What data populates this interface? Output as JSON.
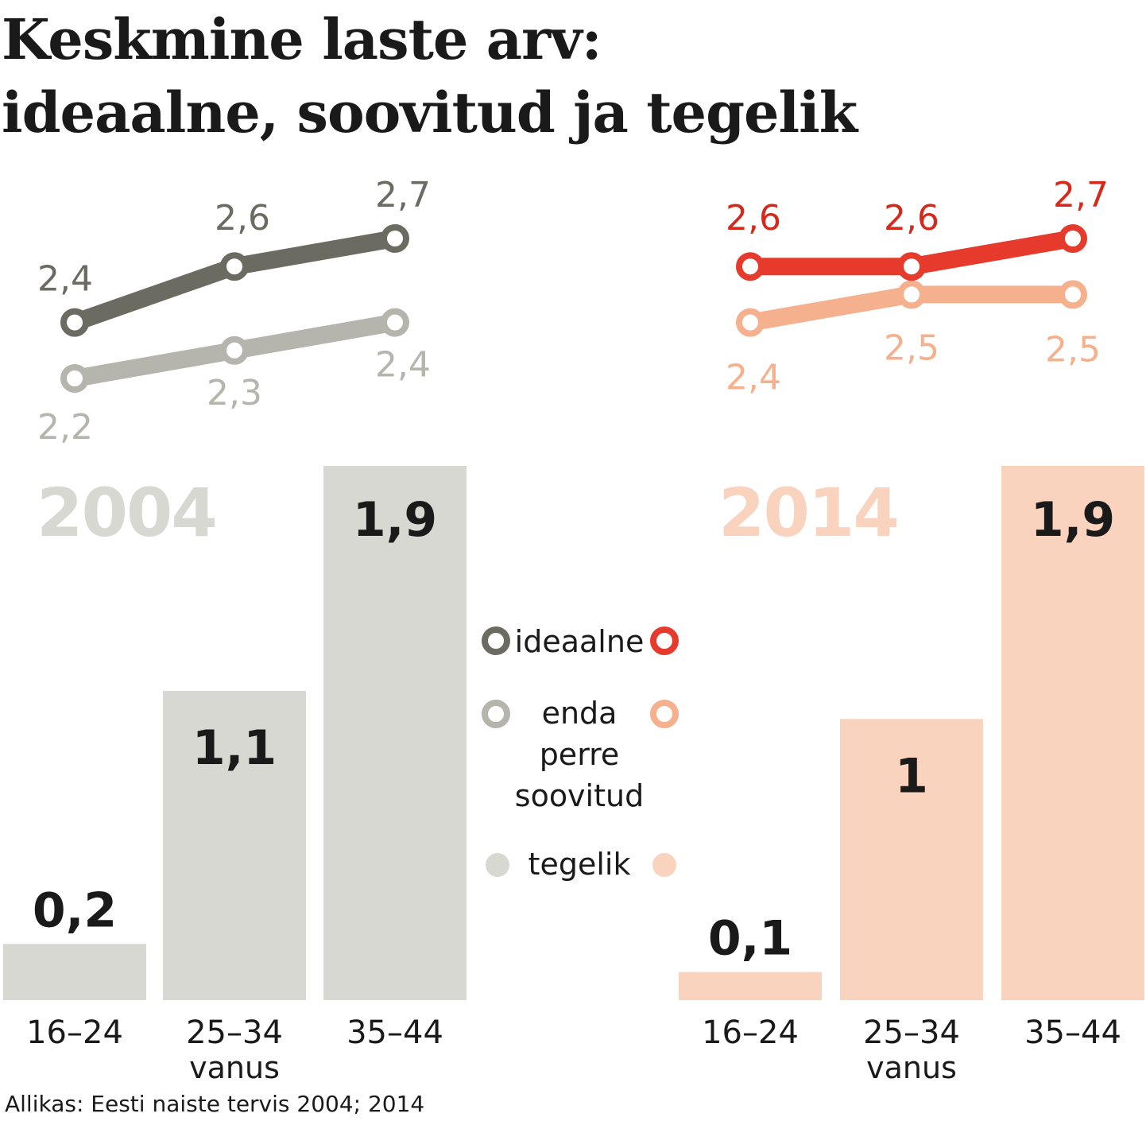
{
  "title_line1": "Keskmine laste arv:",
  "title_line2": "ideaalne, soovitud ja tegelik",
  "source": "Allikas: Eesti naiste tervis 2004; 2014",
  "legend": {
    "ideal": "ideaalne",
    "desired_1": "enda",
    "desired_2": "perre",
    "desired_3": "soovitud",
    "actual": "tegelik"
  },
  "colors": {
    "ideal_2004": "#6b6b62",
    "desired_2004": "#b5b5ad",
    "actual_2004": "#d8d8d2",
    "ideal_2014": "#e53a2c",
    "desired_2014": "#f5b08e",
    "actual_2014": "#f9d3bd",
    "year_2004": "#d8d8d2",
    "year_2014": "#f9d3bd",
    "text": "#1a1a1a"
  },
  "chart_data": [
    {
      "type": "bar",
      "panel": "2004",
      "year_label": "2004",
      "categories": [
        "16–24",
        "25–34",
        "35–44"
      ],
      "xlabel": "vanus",
      "series": [
        {
          "name": "ideaalne",
          "kind": "line",
          "values": [
            2.4,
            2.6,
            2.7
          ],
          "labels": [
            "2,4",
            "2,6",
            "2,7"
          ]
        },
        {
          "name": "enda perre soovitud",
          "kind": "line",
          "values": [
            2.2,
            2.3,
            2.4
          ],
          "labels": [
            "2,2",
            "2,3",
            "2,4"
          ]
        },
        {
          "name": "tegelik",
          "kind": "bar",
          "values": [
            0.2,
            1.1,
            1.9
          ],
          "labels": [
            "0,2",
            "1,1",
            "1,9"
          ]
        }
      ]
    },
    {
      "type": "bar",
      "panel": "2014",
      "year_label": "2014",
      "categories": [
        "16–24",
        "25–34",
        "35–44"
      ],
      "xlabel": "vanus",
      "series": [
        {
          "name": "ideaalne",
          "kind": "line",
          "values": [
            2.6,
            2.6,
            2.7
          ],
          "labels": [
            "2,6",
            "2,6",
            "2,7"
          ]
        },
        {
          "name": "enda perre soovitud",
          "kind": "line",
          "values": [
            2.4,
            2.5,
            2.5
          ],
          "labels": [
            "2,4",
            "2,5",
            "2,5"
          ]
        },
        {
          "name": "tegelik",
          "kind": "bar",
          "values": [
            0.1,
            1,
            1.9
          ],
          "labels": [
            "0,1",
            "1",
            "1,9"
          ]
        }
      ]
    }
  ]
}
